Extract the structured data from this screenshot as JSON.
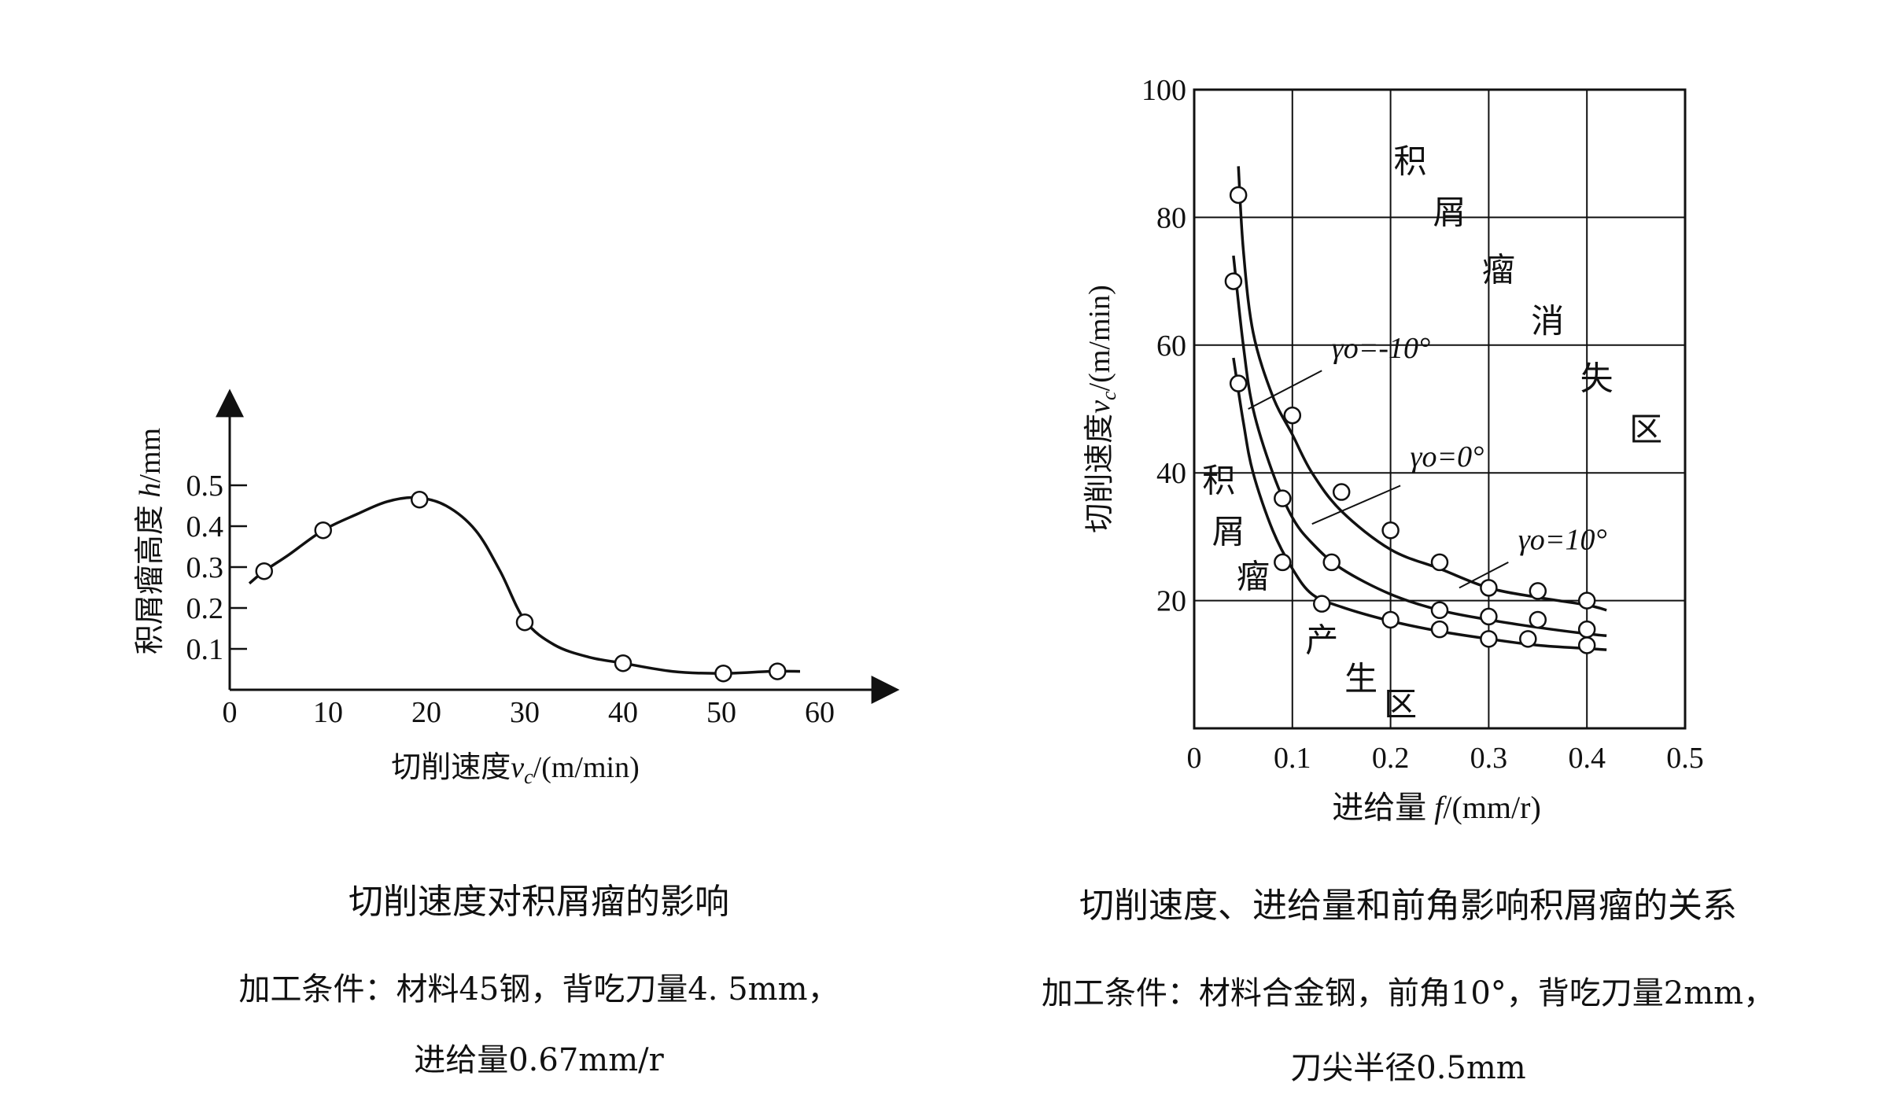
{
  "chart_data": [
    {
      "type": "line",
      "title": "切削速度对积屑瘤的影响",
      "conditions": [
        "加工条件：材料45钢，背吃刀量4. 5mm，",
        "进给量0.67mm/r"
      ],
      "xlabel": "切削速度v_c/(m/min)",
      "ylabel": "积屑瘤高度 h/mm",
      "xlim": [
        0,
        65
      ],
      "ylim": [
        0,
        0.6
      ],
      "x_ticks": [
        "0",
        "10",
        "20",
        "30",
        "40",
        "50",
        "60"
      ],
      "x_tick_values": [
        0,
        10,
        20,
        30,
        40,
        50,
        60
      ],
      "y_ticks": [
        "0.1",
        "0.2",
        "0.3",
        "0.4",
        "0.5"
      ],
      "y_tick_values": [
        0.1,
        0.2,
        0.3,
        0.4,
        0.5
      ],
      "grid": false,
      "series": [
        {
          "curve": [
            [
              2,
              0.26
            ],
            [
              3.5,
              0.29
            ],
            [
              6,
              0.33
            ],
            [
              9.5,
              0.39
            ],
            [
              13,
              0.43
            ],
            [
              16,
              0.46
            ],
            [
              19,
              0.47
            ],
            [
              22,
              0.45
            ],
            [
              25,
              0.39
            ],
            [
              27.5,
              0.29
            ],
            [
              30,
              0.17
            ],
            [
              33,
              0.11
            ],
            [
              36.5,
              0.08
            ],
            [
              40,
              0.065
            ],
            [
              45,
              0.045
            ],
            [
              50,
              0.04
            ],
            [
              55,
              0.045
            ],
            [
              58,
              0.045
            ]
          ],
          "x": [
            3.5,
            9.5,
            19.3,
            30,
            40,
            50.2,
            55.7
          ],
          "y": [
            0.29,
            0.39,
            0.465,
            0.165,
            0.065,
            0.04,
            0.045
          ]
        }
      ]
    },
    {
      "type": "line",
      "title": "切削速度、进给量和前角影响积屑瘤的关系",
      "conditions": [
        "加工条件：材料合金钢，前角10°，背吃刀量2mm，",
        "刀尖半径0.5mm"
      ],
      "xlabel": "进给量 f/(mm/r)",
      "ylabel": "切削速度v_c/(m/min)",
      "xlim": [
        0,
        0.5
      ],
      "ylim": [
        0,
        100
      ],
      "x_ticks": [
        "0",
        "0.1",
        "0.2",
        "0.3",
        "0.4",
        "0.5"
      ],
      "x_tick_values": [
        0,
        0.1,
        0.2,
        0.3,
        0.4,
        0.5
      ],
      "y_ticks": [
        "20",
        "40",
        "60",
        "80",
        "100"
      ],
      "y_tick_values": [
        20,
        40,
        60,
        80,
        100
      ],
      "grid": true,
      "region_labels": [
        {
          "text": "积",
          "x": 0.22,
          "y": 87
        },
        {
          "text": "屑",
          "x": 0.26,
          "y": 79
        },
        {
          "text": "瘤",
          "x": 0.31,
          "y": 70
        },
        {
          "text": "消",
          "x": 0.36,
          "y": 62
        },
        {
          "text": "失",
          "x": 0.41,
          "y": 53
        },
        {
          "text": "区",
          "x": 0.46,
          "y": 45
        },
        {
          "text": "积",
          "x": 0.025,
          "y": 37
        },
        {
          "text": "屑",
          "x": 0.035,
          "y": 29
        },
        {
          "text": "瘤",
          "x": 0.06,
          "y": 22
        },
        {
          "text": "产",
          "x": 0.13,
          "y": 12
        },
        {
          "text": "生",
          "x": 0.17,
          "y": 6
        },
        {
          "text": "区",
          "x": 0.21,
          "y": 2
        }
      ],
      "series": [
        {
          "name": "γo=-10°",
          "label_at": [
            0.14,
            58
          ],
          "leader": [
            [
              0.055,
              50
            ],
            [
              0.13,
              56
            ]
          ],
          "curve": [
            [
              0.045,
              88
            ],
            [
              0.05,
              75
            ],
            [
              0.06,
              62
            ],
            [
              0.08,
              52
            ],
            [
              0.1,
              46
            ],
            [
              0.12,
              40
            ],
            [
              0.15,
              34
            ],
            [
              0.2,
              28
            ],
            [
              0.25,
              25
            ],
            [
              0.3,
              22
            ],
            [
              0.35,
              20.5
            ],
            [
              0.4,
              19.3
            ],
            [
              0.42,
              18.5
            ]
          ],
          "x": [
            0.045,
            0.1,
            0.15,
            0.2,
            0.25,
            0.3,
            0.35,
            0.4
          ],
          "y": [
            83.5,
            49,
            37,
            31,
            26,
            22,
            21.5,
            20
          ]
        },
        {
          "name": "γo=0°",
          "label_at": [
            0.22,
            41
          ],
          "leader": [
            [
              0.12,
              32
            ],
            [
              0.21,
              38
            ]
          ],
          "curve": [
            [
              0.04,
              74
            ],
            [
              0.05,
              60
            ],
            [
              0.06,
              50
            ],
            [
              0.08,
              40
            ],
            [
              0.1,
              33
            ],
            [
              0.12,
              29
            ],
            [
              0.15,
              25
            ],
            [
              0.2,
              21
            ],
            [
              0.25,
              18.5
            ],
            [
              0.3,
              17
            ],
            [
              0.35,
              15.8
            ],
            [
              0.4,
              14.8
            ],
            [
              0.42,
              14.5
            ]
          ],
          "x": [
            0.04,
            0.09,
            0.14,
            0.25,
            0.3,
            0.35,
            0.4
          ],
          "y": [
            70,
            36,
            26,
            18.5,
            17.5,
            17,
            15.5
          ]
        },
        {
          "name": "γo=10°",
          "label_at": [
            0.33,
            28
          ],
          "leader": [
            [
              0.27,
              22
            ],
            [
              0.32,
              26
            ]
          ],
          "curve": [
            [
              0.04,
              58
            ],
            [
              0.05,
              48
            ],
            [
              0.06,
              40
            ],
            [
              0.08,
              31
            ],
            [
              0.1,
              25
            ],
            [
              0.12,
              21
            ],
            [
              0.15,
              19
            ],
            [
              0.2,
              16.8
            ],
            [
              0.25,
              15.2
            ],
            [
              0.3,
              14
            ],
            [
              0.35,
              13
            ],
            [
              0.4,
              12.5
            ],
            [
              0.42,
              12.3
            ]
          ],
          "x": [
            0.045,
            0.09,
            0.13,
            0.2,
            0.25,
            0.3,
            0.34,
            0.4
          ],
          "y": [
            54,
            26,
            19.5,
            17,
            15.5,
            14,
            14,
            13
          ]
        }
      ]
    }
  ]
}
